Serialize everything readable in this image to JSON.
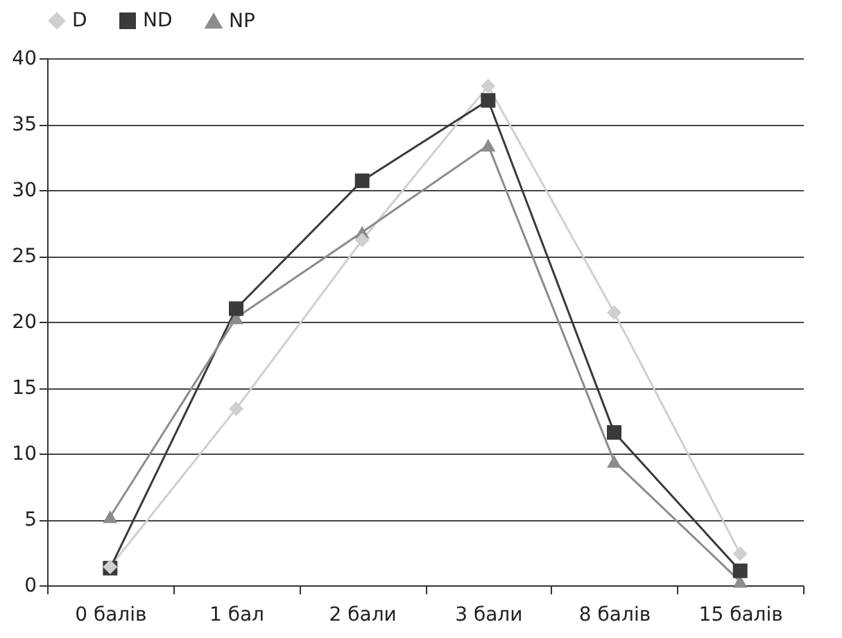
{
  "chart_data": {
    "type": "line",
    "categories": [
      "0 балів",
      "1 бал",
      "2 бали",
      "3 бали",
      "8 балів",
      "15 балів"
    ],
    "series": [
      {
        "name": "D",
        "color": "#cfcfcf",
        "marker": "diamond",
        "values": [
          1.4,
          13.4,
          26.2,
          37.9,
          20.7,
          2.4
        ]
      },
      {
        "name": "ND",
        "color": "#3a3a3a",
        "marker": "square",
        "values": [
          1.3,
          21.0,
          30.7,
          36.8,
          11.6,
          1.1
        ]
      },
      {
        "name": "NP",
        "color": "#8c8c8c",
        "marker": "triangle",
        "values": [
          5.2,
          20.3,
          26.8,
          33.4,
          9.4,
          0.3
        ]
      }
    ],
    "ylim": [
      0,
      40
    ],
    "yticks": [
      0,
      5,
      10,
      15,
      20,
      25,
      30,
      35,
      40
    ],
    "grid": "y",
    "legend": "top",
    "line_style": "solid"
  }
}
